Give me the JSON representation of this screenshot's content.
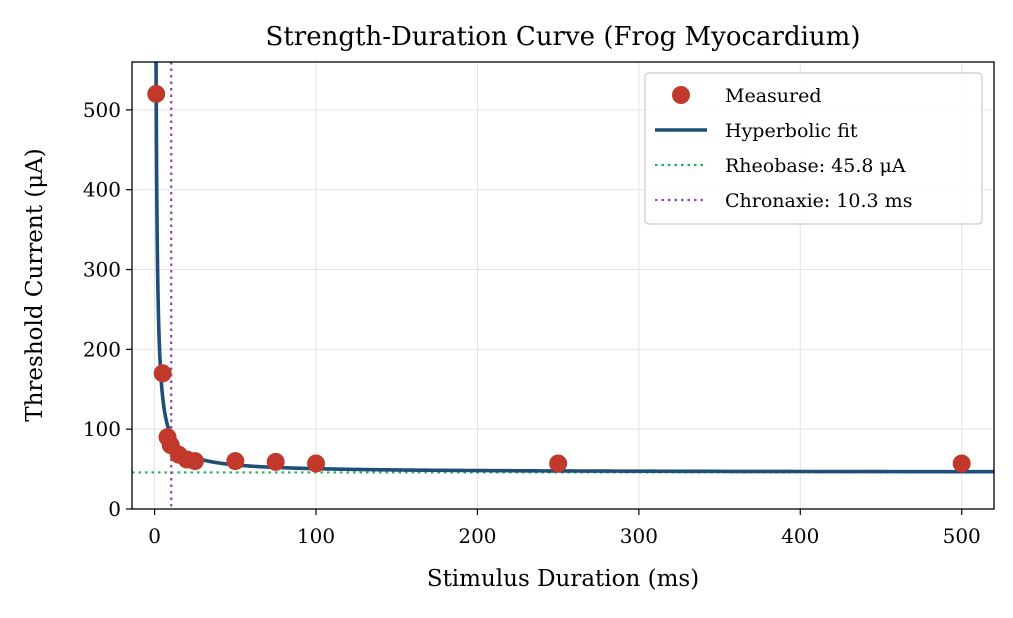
{
  "chart_data": {
    "type": "scatter",
    "title": "Strength-Duration Curve (Frog Myocardium)",
    "xlabel": "Stimulus Duration (ms)",
    "ylabel": "Threshold Current (μA)",
    "xlim": [
      -14,
      520
    ],
    "ylim": [
      0,
      560
    ],
    "xticks": [
      0,
      100,
      200,
      300,
      400,
      500
    ],
    "yticks": [
      0,
      100,
      200,
      300,
      400,
      500
    ],
    "grid": true,
    "legend_position": "top-right",
    "series": [
      {
        "name": "Measured",
        "kind": "scatter",
        "color": "#c0392b",
        "points": [
          {
            "x": 1,
            "y": 520
          },
          {
            "x": 5,
            "y": 170
          },
          {
            "x": 8,
            "y": 90
          },
          {
            "x": 10,
            "y": 80
          },
          {
            "x": 15,
            "y": 68
          },
          {
            "x": 20,
            "y": 62
          },
          {
            "x": 25,
            "y": 60
          },
          {
            "x": 50,
            "y": 60
          },
          {
            "x": 75,
            "y": 59
          },
          {
            "x": 100,
            "y": 57
          },
          {
            "x": 250,
            "y": 57
          },
          {
            "x": 500,
            "y": 57
          }
        ]
      },
      {
        "name": "Hyperbolic fit",
        "kind": "line",
        "color": "#1f4e79",
        "model": "hyperbolic",
        "rheobase": 45.8,
        "chronaxie": 10.3,
        "x_range": [
          0.8,
          520
        ]
      },
      {
        "name": "Rheobase: 45.8 μA",
        "kind": "hline",
        "color": "#27ae60",
        "y": 45.8
      },
      {
        "name": "Chronaxie: 10.3 ms",
        "kind": "vline",
        "color": "#8e44ad",
        "x": 10.3
      }
    ]
  }
}
